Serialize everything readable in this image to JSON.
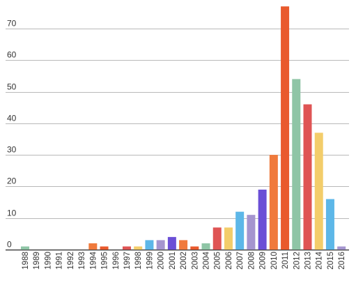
{
  "chart_data": {
    "type": "bar",
    "title": "",
    "xlabel": "",
    "ylabel": "",
    "ylim": [
      0,
      77
    ],
    "yticks": [
      0,
      10,
      20,
      30,
      40,
      50,
      60,
      70
    ],
    "grid": true,
    "categories": [
      "1988",
      "1989",
      "1990",
      "1991",
      "1992",
      "1993",
      "1994",
      "1995",
      "1996",
      "1997",
      "1998",
      "1999",
      "2000",
      "2001",
      "2002",
      "2003",
      "2004",
      "2005",
      "2006",
      "2007",
      "2008",
      "2009",
      "2010",
      "2011",
      "2012",
      "2013",
      "2014",
      "2015",
      "2016"
    ],
    "values": [
      1,
      0,
      0,
      0,
      0,
      0,
      2,
      1,
      0,
      1,
      1,
      3,
      3,
      4,
      3,
      1,
      2,
      7,
      7,
      12,
      11,
      19,
      30,
      77,
      54,
      46,
      37,
      16,
      1
    ],
    "colors": [
      "#8fc5a6",
      "#e36b3a",
      "#e36b3a",
      "#e36b3a",
      "#e36b3a",
      "#e36b3a",
      "#f07a3c",
      "#e95a2d",
      "#e36b3a",
      "#df5454",
      "#f3cd6a",
      "#5db7e8",
      "#a595cf",
      "#6b4fd6",
      "#f07a3c",
      "#e95a2d",
      "#8fc5a6",
      "#df5454",
      "#f3cd6a",
      "#5db7e8",
      "#a595cf",
      "#6b4fd6",
      "#f07a3c",
      "#e95a2d",
      "#8fc5a6",
      "#df5454",
      "#f3cd6a",
      "#5db7e8",
      "#a595cf"
    ]
  }
}
